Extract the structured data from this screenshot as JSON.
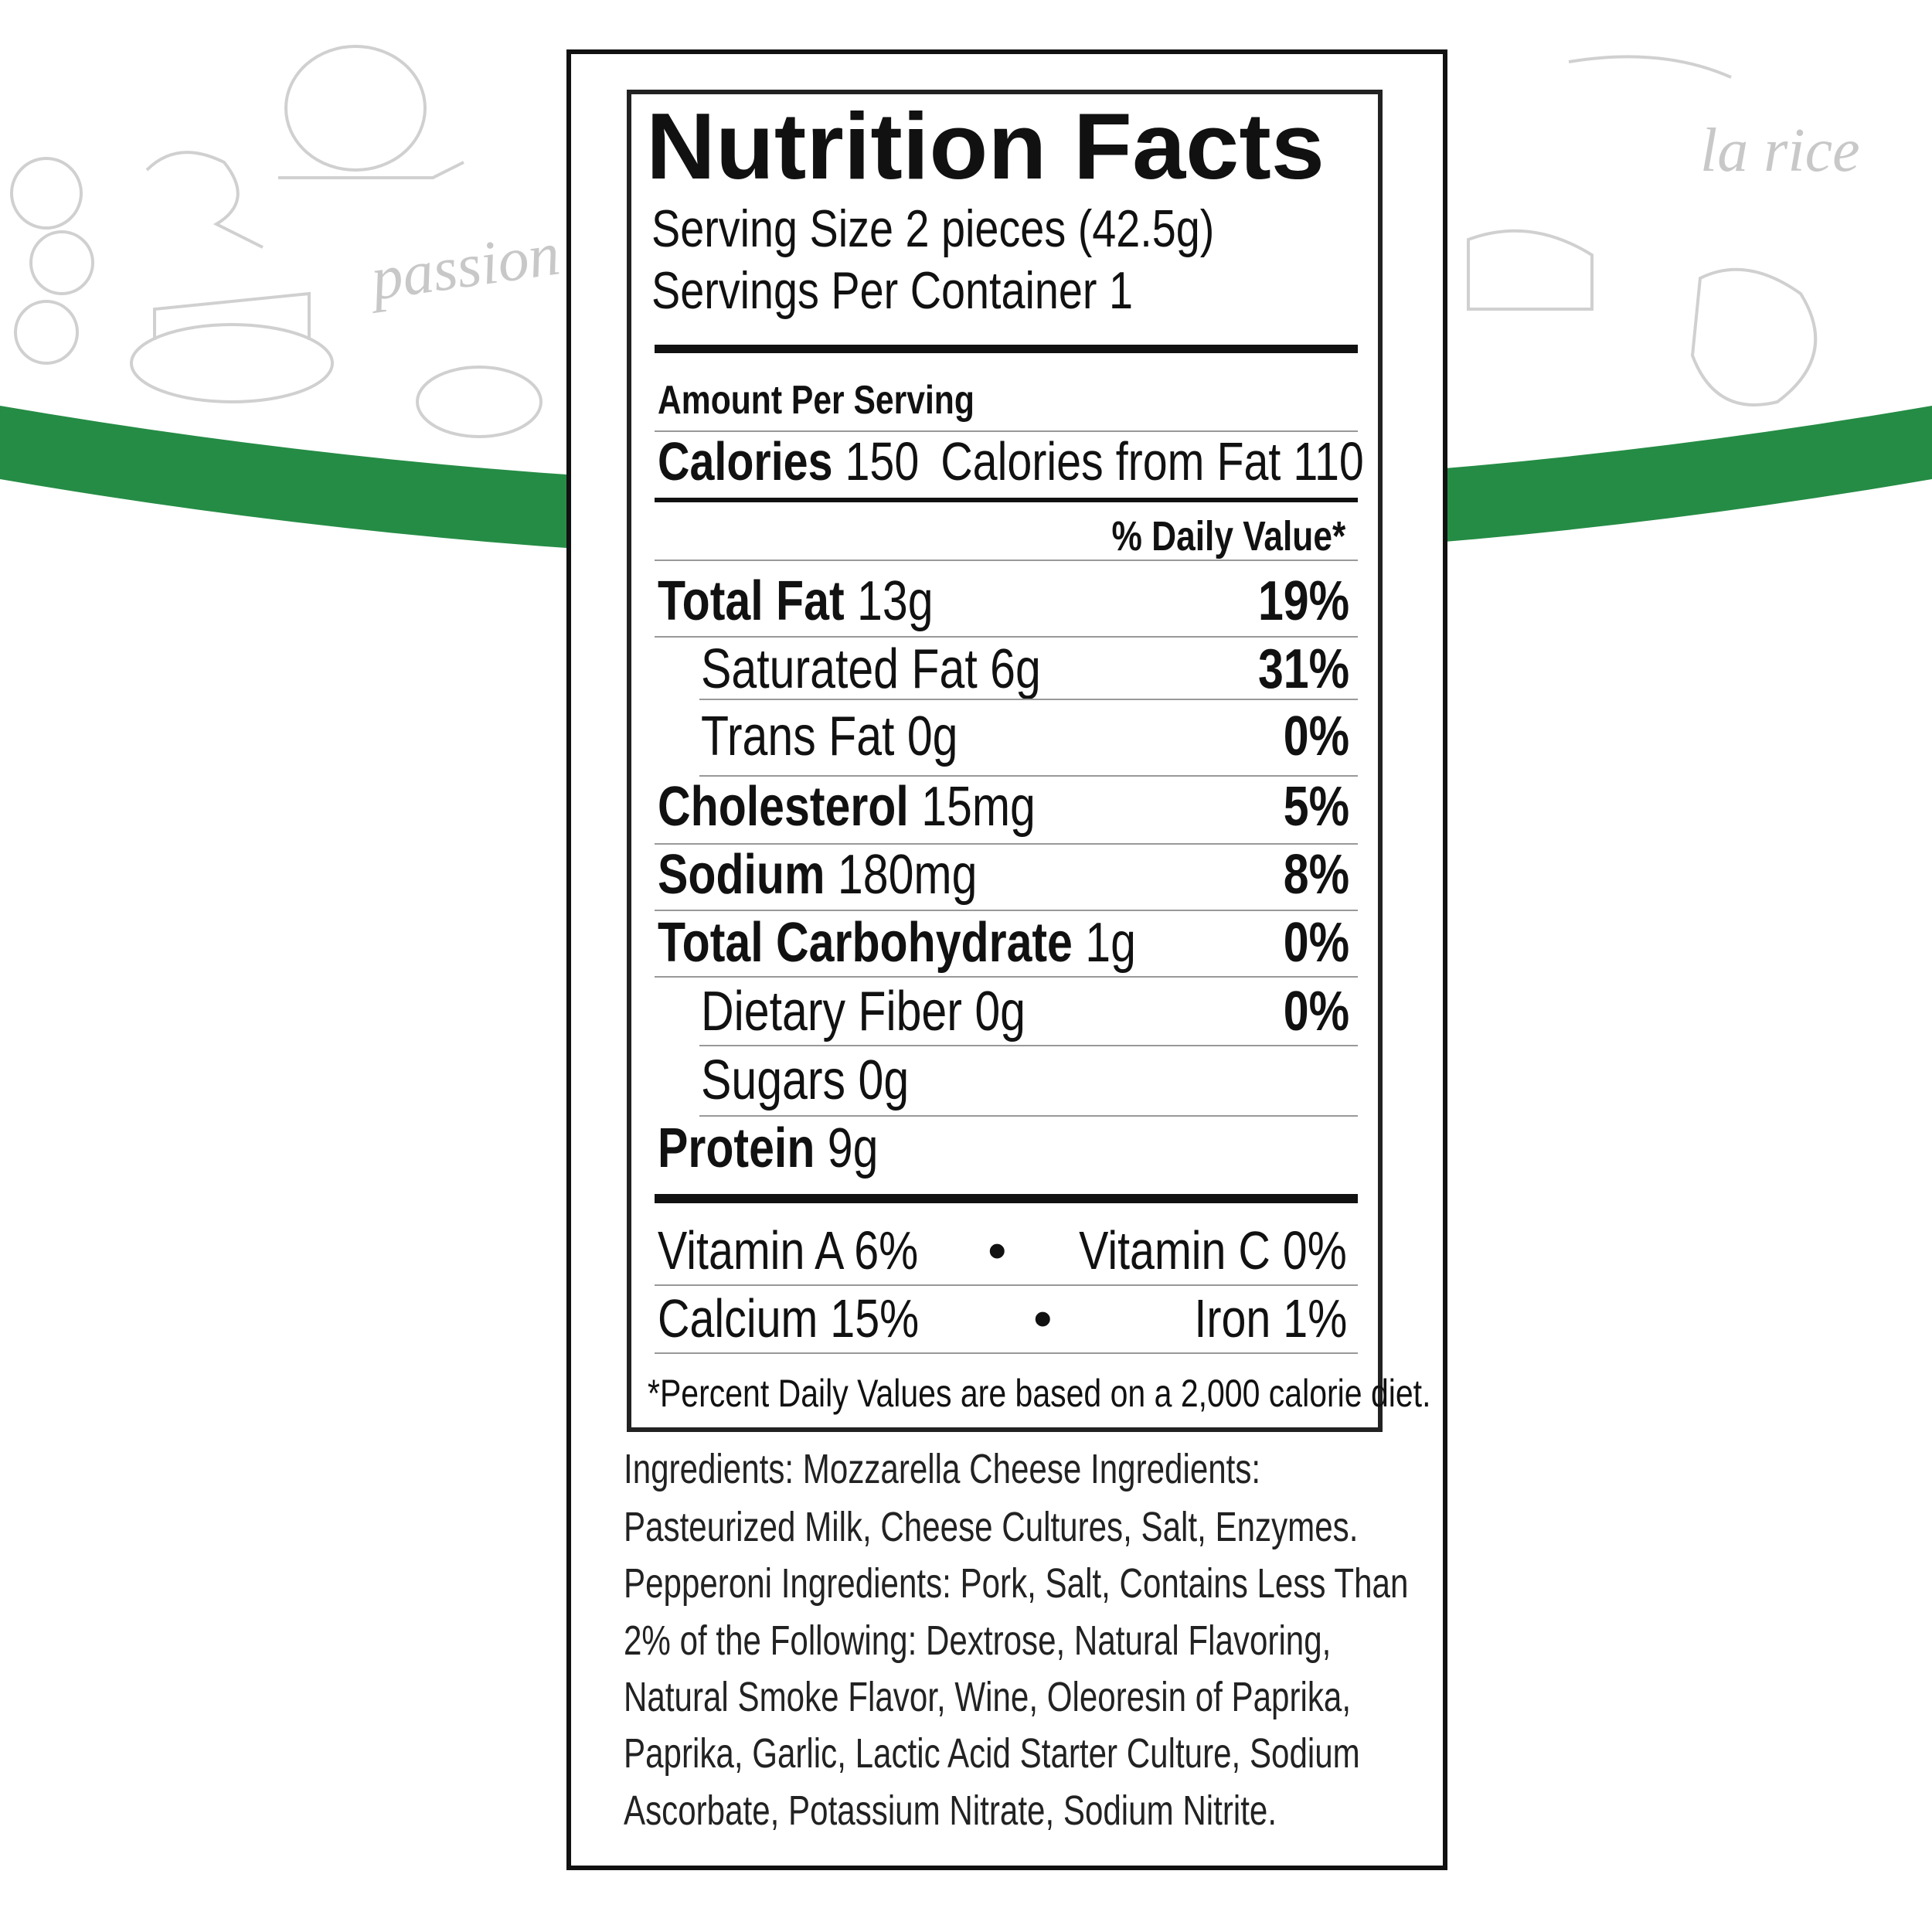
{
  "theme": {
    "band_color": "#258c45",
    "sketch_color": "#c8c8c8"
  },
  "background_text": [
    "passion",
    "la rice"
  ],
  "label": {
    "title": "Nutrition Facts",
    "serving_size": "Serving Size 2 pieces (42.5g)",
    "servings_per_container": "Servings Per Container 1",
    "amount_per_serving": "Amount Per Serving",
    "calories_label": "Calories",
    "calories_value": "150",
    "calories_from_fat": "Calories from Fat 110",
    "daily_value_header": "% Daily Value*",
    "nutrients": [
      {
        "name": "Total Fat",
        "amount": "13g",
        "dv": "19%"
      },
      {
        "name": "Saturated Fat",
        "amount": "6g",
        "dv": "31%"
      },
      {
        "name": "Trans Fat",
        "amount": "0g",
        "dv": "0%"
      },
      {
        "name": "Cholesterol",
        "amount": "15mg",
        "dv": "5%"
      },
      {
        "name": "Sodium",
        "amount": "180mg",
        "dv": "8%"
      },
      {
        "name": "Total Carbohydrate",
        "amount": "1g",
        "dv": "0%"
      },
      {
        "name": "Dietary Fiber",
        "amount": "0g",
        "dv": "0%"
      },
      {
        "name": "Sugars",
        "amount": "0g",
        "dv": ""
      },
      {
        "name": "Protein",
        "amount": "9g",
        "dv": ""
      }
    ],
    "vitamins": [
      {
        "left": "Vitamin A 6%",
        "right": "Vitamin C 0%"
      },
      {
        "left": "Calcium 15%",
        "right": "Iron 1%"
      }
    ],
    "bullet": "•",
    "footnote": "*Percent Daily Values are based on a 2,000 calorie diet."
  },
  "ingredients": [
    "Ingredients: Mozzarella Cheese Ingredients:",
    "Pasteurized Milk, Cheese Cultures, Salt, Enzymes.",
    "Pepperoni Ingredients: Pork, Salt, Contains Less Than",
    "2% of the Following: Dextrose, Natural Flavoring,",
    "Natural Smoke Flavor, Wine, Oleoresin of Paprika,",
    "Paprika, Garlic, Lactic Acid Starter Culture, Sodium",
    "Ascorbate, Potassium Nitrate, Sodium Nitrite."
  ]
}
